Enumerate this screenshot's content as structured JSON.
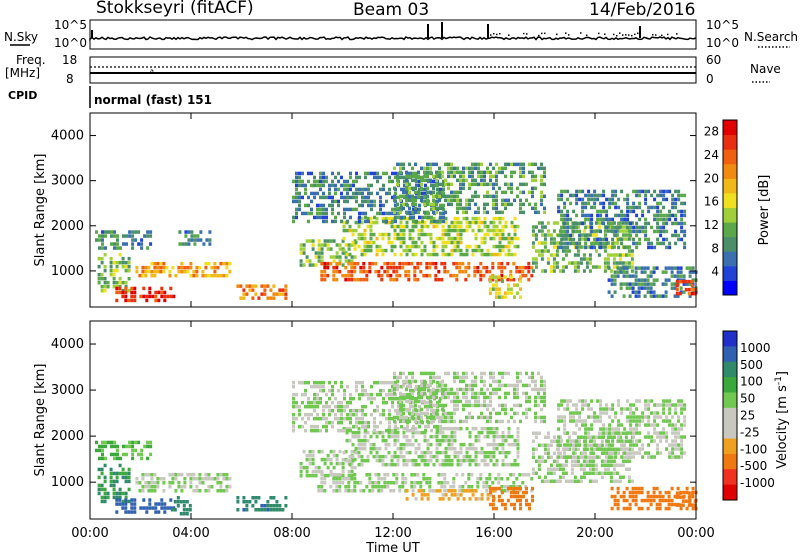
{
  "header": {
    "station": "Stokkseyri (fitACF)",
    "beam": "Beam 03",
    "date": "14/Feb/2016"
  },
  "top_panels": {
    "nsky_label": "N.Sky",
    "nsky_top": "10^5",
    "nsky_bottom": "10^0",
    "nsearch_label": "N.Search",
    "nsearch_top": "10^5",
    "nsearch_bottom": "10^0",
    "freq_label": "Freq.",
    "freq_unit": "[MHz]",
    "freq_top": "18",
    "freq_bottom": "8",
    "nave_label": "Nave",
    "nave_top": "60",
    "nave_bottom": "0",
    "cpid_label": "CPID",
    "cpid_value": "normal (fast) 151"
  },
  "colors": {
    "power": [
      "#0000ff",
      "#2244d6",
      "#3a6fb0",
      "#4a8f6a",
      "#5aa84a",
      "#9fd03a",
      "#f0e020",
      "#f0b818",
      "#f08a10",
      "#f06010",
      "#e83010",
      "#e00000"
    ],
    "velocity": [
      "#e00000",
      "#f03020",
      "#f07810",
      "#f0a020",
      "#c8c8c0",
      "#c8c8c0",
      "#70c850",
      "#3aa83a",
      "#2f8a6a",
      "#3060b0",
      "#2030c8"
    ]
  },
  "chart_data": [
    {
      "type": "heatmap",
      "name": "power",
      "ylabel": "Slant Range [km]",
      "xlabel": "",
      "xlim": [
        "00:00",
        "00:00"
      ],
      "xticks": [
        "00:00",
        "04:00",
        "08:00",
        "12:00",
        "16:00",
        "20:00",
        "00:00"
      ],
      "ylim": [
        200,
        4500
      ],
      "yticks": [
        "1000",
        "2000",
        "3000",
        "4000"
      ],
      "colorbar_label": "Power [dB]",
      "colorbar_ticks": [
        "4",
        "8",
        "12",
        "16",
        "20",
        "24",
        "28"
      ],
      "colorbar_range": [
        0,
        30
      ],
      "regions": [
        {
          "t0": 0.2,
          "t1": 2.4,
          "r0": 1500,
          "r1": 1900,
          "v": 8
        },
        {
          "t0": 0.3,
          "t1": 1.6,
          "r0": 600,
          "r1": 1400,
          "v": 12
        },
        {
          "t0": 1.0,
          "t1": 3.3,
          "r0": 350,
          "r1": 650,
          "v": 27
        },
        {
          "t0": 1.8,
          "t1": 5.5,
          "r0": 850,
          "r1": 1200,
          "v": 20
        },
        {
          "t0": 3.5,
          "t1": 4.8,
          "r0": 1600,
          "r1": 1900,
          "v": 8
        },
        {
          "t0": 5.8,
          "t1": 7.8,
          "r0": 400,
          "r1": 700,
          "v": 22
        },
        {
          "t0": 8.3,
          "t1": 10.5,
          "r0": 1100,
          "r1": 1700,
          "v": 12
        },
        {
          "t0": 9.0,
          "t1": 17.5,
          "r0": 800,
          "r1": 1200,
          "v": 24
        },
        {
          "t0": 10.0,
          "t1": 17.0,
          "r0": 1400,
          "r1": 2200,
          "v": 14
        },
        {
          "t0": 8.0,
          "t1": 14.0,
          "r0": 2100,
          "r1": 3200,
          "v": 8
        },
        {
          "t0": 12.0,
          "t1": 18.0,
          "r0": 2300,
          "r1": 3400,
          "v": 10
        },
        {
          "t0": 15.8,
          "t1": 17.0,
          "r0": 400,
          "r1": 900,
          "v": 16
        },
        {
          "t0": 17.5,
          "t1": 21.5,
          "r0": 1000,
          "r1": 2100,
          "v": 12
        },
        {
          "t0": 18.5,
          "t1": 23.5,
          "r0": 1500,
          "r1": 2800,
          "v": 8
        },
        {
          "t0": 20.5,
          "t1": 24.0,
          "r0": 450,
          "r1": 1100,
          "v": 8
        },
        {
          "t0": 23.2,
          "t1": 24.0,
          "r0": 500,
          "r1": 800,
          "v": 26
        }
      ]
    },
    {
      "type": "heatmap",
      "name": "velocity",
      "ylabel": "Slant Range [km]",
      "xlabel": "Time UT",
      "xlim": [
        "00:00",
        "00:00"
      ],
      "xticks": [
        "00:00",
        "04:00",
        "08:00",
        "12:00",
        "16:00",
        "20:00",
        "00:00"
      ],
      "ylim": [
        200,
        4500
      ],
      "yticks": [
        "1000",
        "2000",
        "3000",
        "4000"
      ],
      "colorbar_label": "Velocity [m s^-1]",
      "colorbar_ticks": [
        "1000",
        "500",
        "100",
        "50",
        "25",
        "-25",
        "-100",
        "-500",
        "-1000"
      ],
      "regions": [
        {
          "t0": 0.2,
          "t1": 2.4,
          "r0": 1500,
          "r1": 1900,
          "v": 25
        },
        {
          "t0": 0.3,
          "t1": 1.6,
          "r0": 600,
          "r1": 1400,
          "v": 50
        },
        {
          "t0": 1.0,
          "t1": 3.3,
          "r0": 350,
          "r1": 650,
          "v": 300
        },
        {
          "t0": 1.8,
          "t1": 5.5,
          "r0": 850,
          "r1": 1200,
          "v": 0
        },
        {
          "t0": 3.2,
          "t1": 4.0,
          "r0": 300,
          "r1": 700,
          "v": 80
        },
        {
          "t0": 5.8,
          "t1": 7.8,
          "r0": 400,
          "r1": 700,
          "v": 80
        },
        {
          "t0": 8.3,
          "t1": 10.5,
          "r0": 1100,
          "r1": 1700,
          "v": 0
        },
        {
          "t0": 9.0,
          "t1": 17.5,
          "r0": 800,
          "r1": 1200,
          "v": 0
        },
        {
          "t0": 10.0,
          "t1": 17.0,
          "r0": 1400,
          "r1": 2200,
          "v": 0
        },
        {
          "t0": 8.0,
          "t1": 14.0,
          "r0": 2100,
          "r1": 3200,
          "v": 0
        },
        {
          "t0": 12.0,
          "t1": 18.0,
          "r0": 2300,
          "r1": 3400,
          "v": 0
        },
        {
          "t0": 12.5,
          "t1": 16.0,
          "r0": 600,
          "r1": 850,
          "v": -60
        },
        {
          "t0": 15.8,
          "t1": 17.5,
          "r0": 400,
          "r1": 900,
          "v": -200
        },
        {
          "t0": 17.5,
          "t1": 21.5,
          "r0": 1000,
          "r1": 2100,
          "v": 0
        },
        {
          "t0": 18.5,
          "t1": 23.5,
          "r0": 1500,
          "r1": 2800,
          "v": 0
        },
        {
          "t0": 20.5,
          "t1": 24.0,
          "r0": 450,
          "r1": 900,
          "v": -150
        },
        {
          "t0": 23.2,
          "t1": 24.0,
          "r0": 500,
          "r1": 800,
          "v": -300
        }
      ]
    }
  ]
}
